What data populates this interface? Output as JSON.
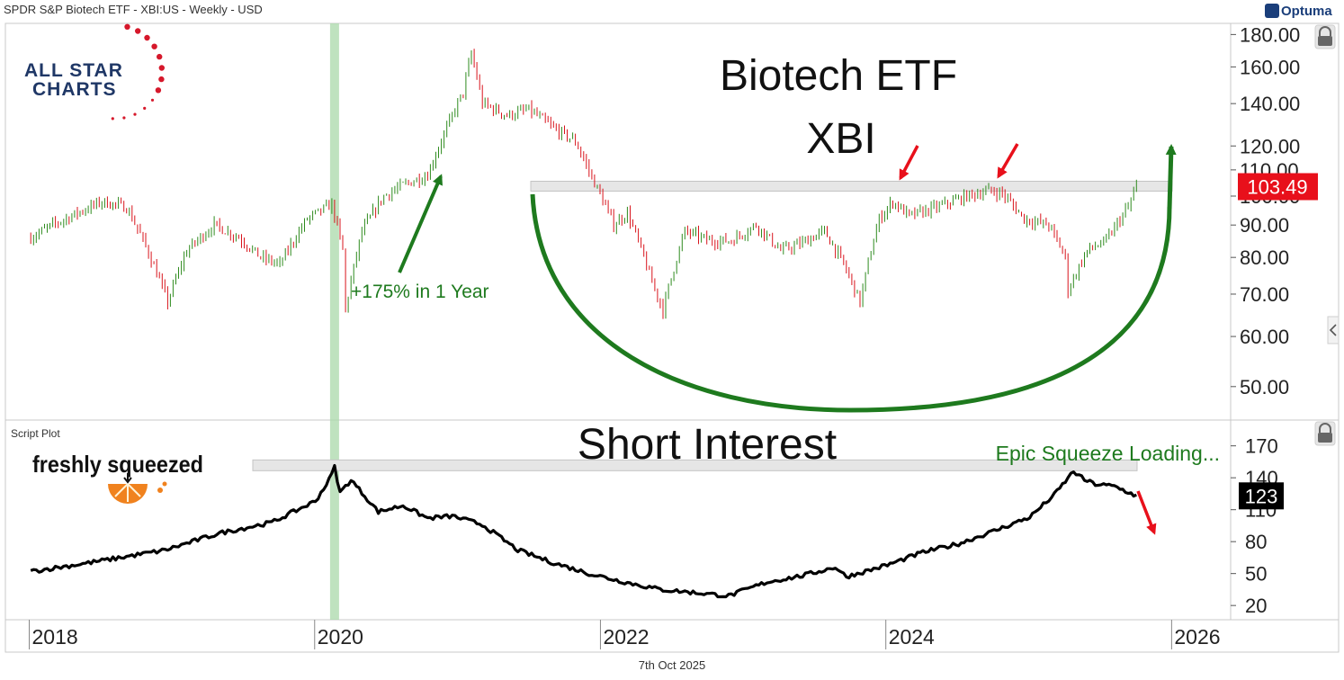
{
  "header": {
    "title": "SPDR S&P Biotech ETF - XBI:US - Weekly - USD"
  },
  "footer": {
    "date": "7th Oct 2025"
  },
  "branding": {
    "optuma": "Optuma",
    "allstar_line1": "ALL STAR",
    "allstar_line2": "CHARTS",
    "freshly": "freshly squeezed"
  },
  "chart_data": [
    {
      "type": "line",
      "panel": "price",
      "title_lines": [
        "Biotech ETF",
        "XBI"
      ],
      "y_scale": "log",
      "ylim": [
        45,
        185
      ],
      "yticks": [
        180,
        160,
        140,
        120,
        110,
        100,
        90,
        80,
        70,
        60,
        50
      ],
      "ytick_labels": [
        "180.00",
        "160.00",
        "140.00",
        "120.00",
        "110.00",
        "100.00",
        "90.00",
        "80.00",
        "70.00",
        "60.00",
        "50.00"
      ],
      "last_value_label": "103.49",
      "last_value_color": "#e8101b",
      "candle_up_color": "#2e8b1e",
      "candle_down_color": "#d8141c",
      "series": [
        {
          "x": [
            "2018-01-05",
            "2018-03-02",
            "2018-05-04",
            "2018-07-06",
            "2018-09-07",
            "2018-10-12",
            "2018-12-21",
            "2019-02-08",
            "2019-04-19",
            "2019-06-21",
            "2019-08-16",
            "2019-10-04",
            "2019-12-13",
            "2020-02-14",
            "2020-03-13",
            "2020-03-20",
            "2020-05-01",
            "2020-06-26",
            "2020-08-14",
            "2020-10-16",
            "2020-11-27",
            "2021-01-15",
            "2021-02-05",
            "2021-03-05",
            "2021-05-07",
            "2021-07-02",
            "2021-09-03",
            "2021-10-29",
            "2021-12-10",
            "2022-02-04",
            "2022-03-11",
            "2022-05-13",
            "2022-06-10",
            "2022-08-05",
            "2022-10-07",
            "2022-12-02",
            "2023-02-03",
            "2023-04-07",
            "2023-05-26",
            "2023-07-28",
            "2023-09-15",
            "2023-10-27",
            "2023-12-15",
            "2024-01-19",
            "2024-03-01",
            "2024-05-10",
            "2024-07-26",
            "2024-09-20",
            "2024-10-25",
            "2024-12-20",
            "2025-02-21",
            "2025-04-04",
            "2025-04-11",
            "2025-05-30",
            "2025-07-18",
            "2025-09-12",
            "2025-10-03"
          ],
          "y": [
            86,
            90,
            94,
            98,
            96,
            87,
            68,
            82,
            90,
            86,
            80,
            78,
            92,
            97,
            82,
            66,
            88,
            100,
            104,
            108,
            125,
            146,
            168,
            140,
            134,
            137,
            128,
            122,
            107,
            90,
            94,
            73,
            66,
            88,
            85,
            85,
            90,
            82,
            84,
            88,
            78,
            68,
            92,
            98,
            93,
            96,
            100,
            102,
            101,
            92,
            90,
            80,
            71,
            82,
            85,
            96,
            103.49
          ]
        }
      ]
    },
    {
      "type": "line",
      "panel": "script-plot",
      "panel_label": "Script Plot",
      "title": "Short Interest",
      "annotation": "Epic Squeeze Loading...",
      "ylim": [
        10,
        190
      ],
      "yticks": [
        170,
        140,
        110,
        80,
        50,
        20
      ],
      "ytick_labels": [
        "170",
        "140",
        "110",
        "80",
        "50",
        "20"
      ],
      "last_value_label": "123",
      "line_color": "#000000",
      "series": [
        {
          "x": [
            "2018-01-05",
            "2018-06-01",
            "2018-12-14",
            "2019-05-03",
            "2019-09-13",
            "2020-01-03",
            "2020-02-07",
            "2020-02-21",
            "2020-03-06",
            "2020-04-03",
            "2020-06-12",
            "2020-08-14",
            "2020-10-16",
            "2020-12-18",
            "2021-03-05",
            "2021-06-04",
            "2021-09-03",
            "2021-12-03",
            "2022-03-04",
            "2022-06-03",
            "2022-09-02",
            "2022-11-25",
            "2023-03-03",
            "2023-06-02",
            "2023-08-25",
            "2023-09-22",
            "2024-01-05",
            "2024-04-05",
            "2024-07-05",
            "2024-10-04",
            "2025-01-03",
            "2025-03-07",
            "2025-04-25",
            "2025-05-23",
            "2025-06-20",
            "2025-08-08",
            "2025-10-03"
          ],
          "y": [
            52,
            60,
            72,
            88,
            98,
            118,
            138,
            150,
            126,
            138,
            108,
            114,
            102,
            104,
            96,
            72,
            60,
            50,
            42,
            35,
            32,
            29,
            42,
            48,
            56,
            47,
            58,
            70,
            78,
            90,
            103,
            124,
            146,
            138,
            134,
            132,
            123
          ]
        }
      ]
    }
  ],
  "x_axis": {
    "tick_labels": [
      "2018",
      "2020",
      "2022",
      "2024",
      "2026"
    ],
    "tick_years": [
      2018,
      2020,
      2022,
      2024,
      2026
    ]
  },
  "annotations": {
    "gain_label": "+175% in 1 Year",
    "gain_color": "#1e7a1e",
    "highlight_week": "2020-02-21",
    "resistance_price": 103.49,
    "short_interest_ceiling": 150,
    "arrow_red": "#e8101b",
    "arc_green": "#1e7a1e"
  }
}
